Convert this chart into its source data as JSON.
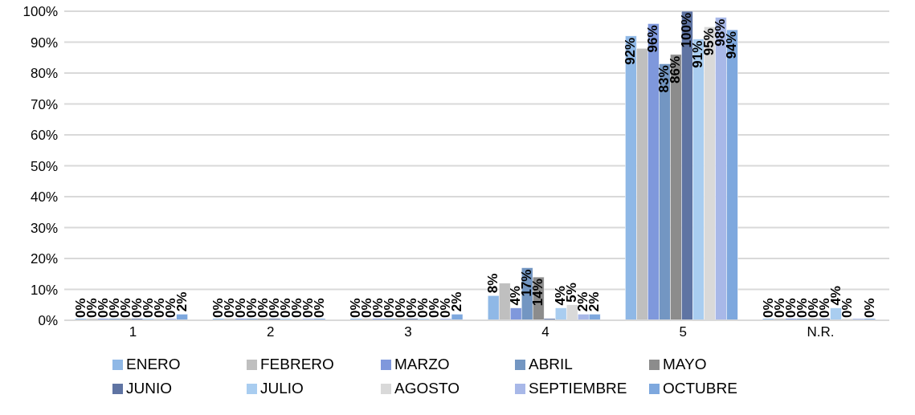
{
  "chart_data": {
    "type": "bar",
    "categories": [
      "1",
      "2",
      "3",
      "4",
      "5",
      "N.R."
    ],
    "ylim": [
      0,
      100
    ],
    "yticks": [
      {
        "value": 0,
        "label": "0%"
      },
      {
        "value": 10,
        "label": "10%"
      },
      {
        "value": 20,
        "label": "20%"
      },
      {
        "value": 30,
        "label": "30%"
      },
      {
        "value": 40,
        "label": "40%"
      },
      {
        "value": 50,
        "label": "50%"
      },
      {
        "value": 60,
        "label": "60%"
      },
      {
        "value": 70,
        "label": "70%"
      },
      {
        "value": 80,
        "label": "80%"
      },
      {
        "value": 90,
        "label": "90%"
      },
      {
        "value": 100,
        "label": "100%"
      }
    ],
    "grid": "y",
    "legend": "bottom",
    "series": [
      {
        "name": "ENERO",
        "color": "#8fb8e6",
        "values": [
          0,
          0,
          0,
          8,
          92,
          0
        ],
        "value_labels": [
          "0%",
          "0%",
          "0%",
          "8%",
          "92%",
          "0%"
        ]
      },
      {
        "name": "FEBRERO",
        "color": "#bfbfbf",
        "values": [
          0,
          0,
          0,
          12,
          88,
          0
        ],
        "value_labels": [
          "0%",
          "0%",
          "0%",
          null,
          null,
          "0%"
        ]
      },
      {
        "name": "MARZO",
        "color": "#7f98dc",
        "values": [
          0,
          0,
          0,
          4,
          96,
          0
        ],
        "value_labels": [
          "0%",
          "0%",
          "0%",
          "4%",
          "96%",
          "0%"
        ]
      },
      {
        "name": "ABRIL",
        "color": "#7396c2",
        "values": [
          0,
          0,
          0,
          17,
          83,
          0
        ],
        "value_labels": [
          "0%",
          "0%",
          "0%",
          "17%",
          "83%",
          "0%"
        ]
      },
      {
        "name": "MAYO",
        "color": "#8c8c8c",
        "values": [
          0,
          0,
          0,
          14,
          86,
          0
        ],
        "value_labels": [
          "0%",
          "0%",
          "0%",
          "14%",
          "86%",
          "0%"
        ]
      },
      {
        "name": "JUNIO",
        "color": "#5f74a3",
        "values": [
          0,
          0,
          0,
          0,
          100,
          0
        ],
        "value_labels": [
          "0%",
          "0%",
          "0%",
          null,
          "100%",
          "0%"
        ]
      },
      {
        "name": "JULIO",
        "color": "#a9cdf0",
        "values": [
          0,
          0,
          0,
          4,
          91,
          4
        ],
        "value_labels": [
          "0%",
          "0%",
          "0%",
          "4%",
          "91%",
          "4%"
        ]
      },
      {
        "name": "AGOSTO",
        "color": "#d9d9d9",
        "values": [
          0,
          0,
          0,
          5,
          95,
          0
        ],
        "value_labels": [
          "0%",
          "0%",
          "0%",
          "5%",
          "95%",
          "0%"
        ]
      },
      {
        "name": "SEPTIEMBRE",
        "color": "#a8b8e8",
        "values": [
          0,
          0,
          0,
          2,
          98,
          0
        ],
        "value_labels": [
          "0%",
          "0%",
          "0%",
          "2%",
          "98%",
          null
        ]
      },
      {
        "name": "OCTUBRE",
        "color": "#7ea8de",
        "values": [
          2,
          0,
          2,
          2,
          94,
          0
        ],
        "value_labels": [
          "2%",
          "0%",
          "2%",
          "2%",
          "94%",
          "0%"
        ]
      }
    ]
  }
}
